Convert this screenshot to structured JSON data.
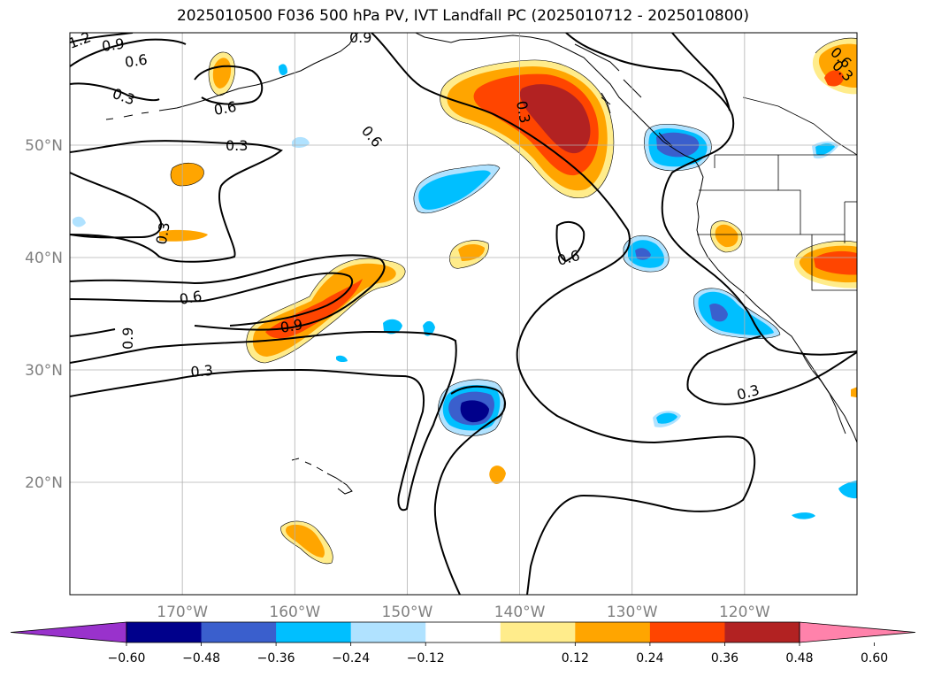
{
  "title": "2025010500 F036 500 hPa PV, IVT Landfall PC (2025010712 - 2025010800)",
  "map": {
    "lon_range": [
      -180,
      -110
    ],
    "lat_range": [
      10,
      60
    ],
    "lat_labels": [
      "50°N",
      "40°N",
      "30°N",
      "20°N"
    ],
    "lat_values": [
      50,
      40,
      30,
      20
    ],
    "lon_labels": [
      "170°W",
      "160°W",
      "150°W",
      "140°W",
      "130°W",
      "120°W"
    ],
    "lon_values": [
      -170,
      -160,
      -150,
      -140,
      -130,
      -120
    ],
    "grid": true
  },
  "colorbar": {
    "ticks": [
      "−0.60",
      "−0.48",
      "−0.36",
      "−0.24",
      "−0.12",
      "0.12",
      "0.24",
      "0.36",
      "0.48",
      "0.60"
    ],
    "colors": [
      "#9932cc",
      "#00008b",
      "#3a5fcd",
      "#00bfff",
      "#b0e2ff",
      "#ffffff",
      "#ffec8b",
      "#ffa500",
      "#ff4500",
      "#b22222",
      "#ff82ab"
    ]
  },
  "contour_labels": [
    "1.2",
    "0.9",
    "0.6",
    "0.3",
    "0.6",
    "0.3",
    "0.6",
    "0.3",
    "0.9",
    "0.6",
    "0.3",
    "0.6",
    "0.9",
    "0.3",
    "0.3",
    "0.6",
    "0.3",
    "0.9"
  ]
}
